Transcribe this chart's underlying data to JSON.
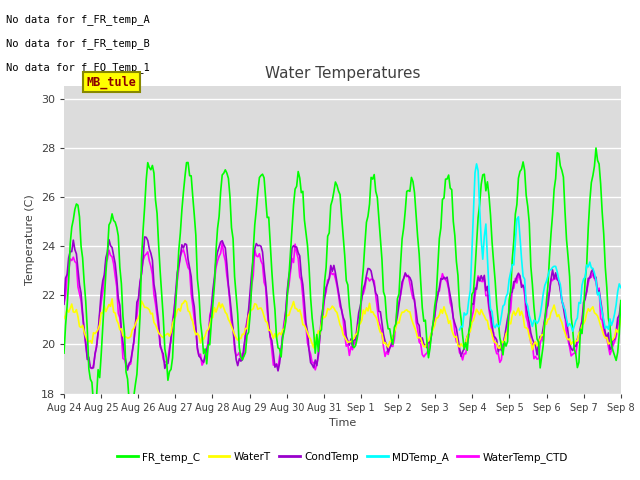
{
  "title": "Water Temperatures",
  "xlabel": "Time",
  "ylabel": "Temperature (C)",
  "ylim": [
    18,
    30.5
  ],
  "yticks": [
    18,
    20,
    22,
    24,
    26,
    28,
    30
  ],
  "bg_color": "#dcdcdc",
  "text_color": "#404040",
  "annotations": [
    "No data for f_FR_temp_A",
    "No data for f_FR_temp_B",
    "No data for f_FO_Temp_1"
  ],
  "mb_tule_text": "MB_tule",
  "legend_labels": [
    "FR_temp_C",
    "WaterT",
    "CondTemp",
    "MDTemp_A",
    "WaterTemp_CTD"
  ],
  "legend_colors": [
    "#00ff00",
    "#ffff00",
    "#9900cc",
    "#00ffff",
    "#ff00ff"
  ],
  "line_widths": [
    1.2,
    1.2,
    1.2,
    1.2,
    1.2
  ],
  "x_tick_labels": [
    "Aug 24",
    "Aug 25",
    "Aug 26",
    "Aug 27",
    "Aug 28",
    "Aug 29",
    "Aug 30",
    "Aug 31",
    "Sep 1",
    "Sep 2",
    "Sep 3",
    "Sep 4",
    "Sep 5",
    "Sep 6",
    "Sep 7",
    "Sep 8"
  ],
  "n_points": 360
}
